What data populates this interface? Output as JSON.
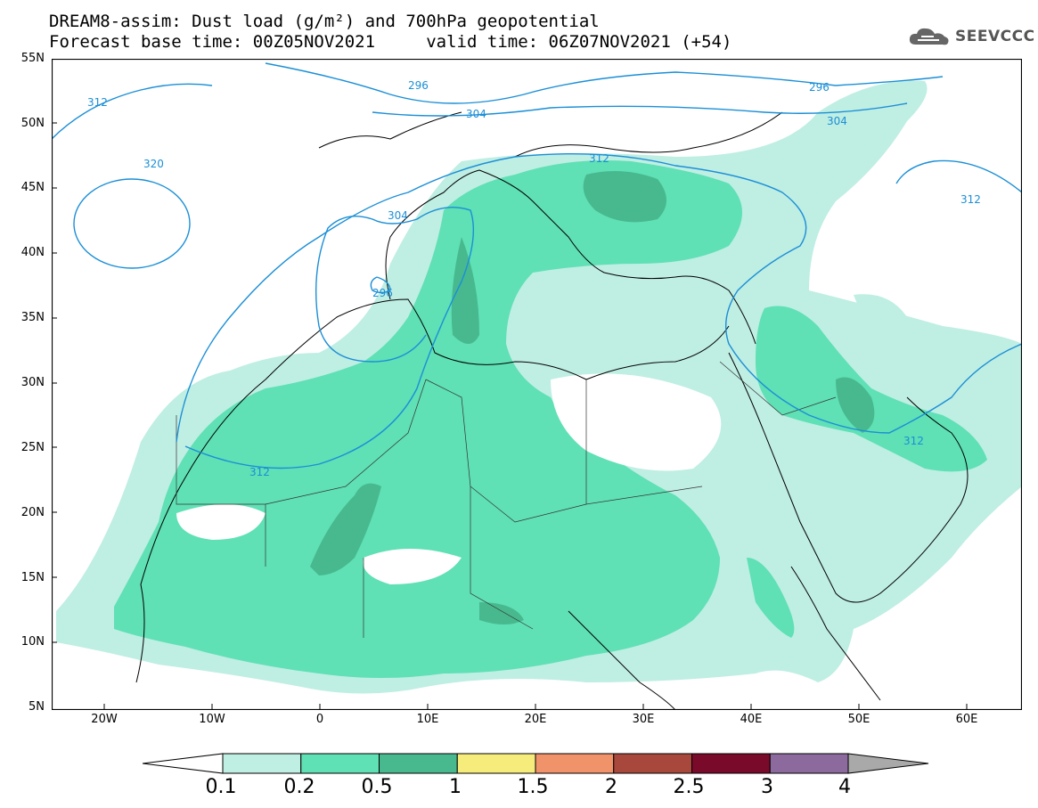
{
  "title": {
    "line1": "DREAM8-assim: Dust load (g/m²) and 700hPa geopotential",
    "line2": "Forecast base time: 00Z05NOV2021     valid time: 06Z07NOV2021 (+54)"
  },
  "logo": {
    "text": "SEEVCCC",
    "icon": "cloud-icon"
  },
  "axes": {
    "lat_labels": [
      "55N",
      "50N",
      "45N",
      "40N",
      "35N",
      "30N",
      "25N",
      "20N",
      "15N",
      "10N",
      "5N"
    ],
    "lon_labels": [
      "20W",
      "10W",
      "0",
      "10E",
      "20E",
      "30E",
      "40E",
      "50E",
      "60E"
    ],
    "lon_range": [
      -25,
      65
    ],
    "lat_range": [
      5,
      55
    ]
  },
  "contours": {
    "labels": [
      "312",
      "296",
      "304",
      "296",
      "304",
      "320",
      "312",
      "304",
      "296",
      "312",
      "312",
      "312"
    ]
  },
  "colorbar": {
    "labels": [
      "0.1",
      "0.2",
      "0.5",
      "1",
      "1.5",
      "2",
      "2.5",
      "3",
      "4"
    ],
    "colors": [
      "#bfeee3",
      "#5fe0b5",
      "#48b98f",
      "#f6ec7b",
      "#f0926a",
      "#a8483c",
      "#7a0a2a",
      "#8c6a9e",
      "#a9a9a9"
    ]
  }
}
